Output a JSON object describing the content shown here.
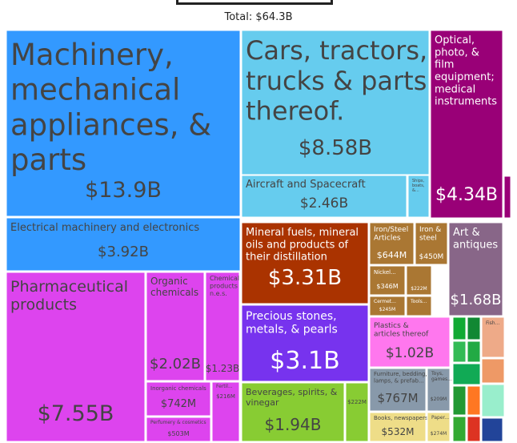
{
  "total_label": "Total: $64.3B",
  "chart_data": {
    "type": "treemap",
    "total": 64.3,
    "unit": "B USD",
    "tiles": [
      {
        "name": "Machinery, mechanical appliances, & parts",
        "label": "Machinery,\nmechanical\nappliances, &\nparts",
        "value": 13.9,
        "value_label": "$13.9B",
        "color": "#3399ff"
      },
      {
        "name": "Electrical machinery and electronics",
        "label": "Electrical machinery and electronics",
        "value": 3.92,
        "value_label": "$3.92B",
        "color": "#3399ff"
      },
      {
        "name": "Cars, tractors, trucks & parts thereof.",
        "label": "Cars, tractors,\ntrucks & parts\nthereof.",
        "value": 8.58,
        "value_label": "$8.58B",
        "color": "#66ccee"
      },
      {
        "name": "Aircraft and Spacecraft",
        "label": "Aircraft and Spacecraft",
        "value": 2.46,
        "value_label": "$2.46B",
        "color": "#66ccee"
      },
      {
        "name": "Ships, boats, &...",
        "label": "Ships,\nboats,\n&...",
        "value": 0.2,
        "value_label": "",
        "color": "#66ccee"
      },
      {
        "name": "Optical, photo, & film equipment; medical instruments",
        "label": "Optical,\nphoto, &\nfilm\nequipment;\nmedical\ninstruments",
        "value": 4.34,
        "value_label": "$4.34B",
        "color": "#990077"
      },
      {
        "name": "Mineral fuels, mineral oils and products of their distillation",
        "label": "Mineral fuels, mineral\noils and products of\ntheir distillation",
        "value": 3.31,
        "value_label": "$3.31B",
        "color": "#aa3300"
      },
      {
        "name": "Iron/Steel Articles",
        "label": "Iron/Steel\nArticles",
        "value": 0.644,
        "value_label": "$644M",
        "color": "#aa7733"
      },
      {
        "name": "Iron & steel",
        "label": "Iron &\nsteel",
        "value": 0.45,
        "value_label": "$450M",
        "color": "#aa7733"
      },
      {
        "name": "Nickel...",
        "label": "Nickel...",
        "value": 0.346,
        "value_label": "$346M",
        "color": "#aa7733"
      },
      {
        "name": "Unlabeled",
        "label": "",
        "value": 0.222,
        "value_label": "$222M",
        "color": "#aa7733"
      },
      {
        "name": "Cermet...",
        "label": "Cermet...",
        "value": 0.245,
        "value_label": "$245M",
        "color": "#aa7733"
      },
      {
        "name": "Tools...",
        "label": "Tools...",
        "value": 0.1,
        "value_label": "",
        "color": "#aa7733"
      },
      {
        "name": "Art & antiques",
        "label": "Art &\nantiques",
        "value": 1.68,
        "value_label": "$1.68B",
        "color": "#886688"
      },
      {
        "name": "Pharmaceutical products",
        "label": "Pharmaceutical\nproducts",
        "value": 7.55,
        "value_label": "$7.55B",
        "color": "#dd44ee"
      },
      {
        "name": "Organic chemicals",
        "label": "Organic\nchemicals",
        "value": 2.02,
        "value_label": "$2.02B",
        "color": "#dd44ee"
      },
      {
        "name": "Chemical products n.e.s.",
        "label": "Chemical\nproducts\nn.e.s.",
        "value": 1.23,
        "value_label": "$1.23B",
        "color": "#dd44ee"
      },
      {
        "name": "Inorganic chemicals",
        "label": "Inorganic chemicals",
        "value": 0.742,
        "value_label": "$742M",
        "color": "#dd44ee"
      },
      {
        "name": "Perfumery & cosmetics",
        "label": "Perfumery & cosmetics",
        "value": 0.503,
        "value_label": "$503M",
        "color": "#dd44ee"
      },
      {
        "name": "Fertil...",
        "label": "Fertil...",
        "value": 0.216,
        "value_label": "$216M",
        "color": "#dd44ee"
      },
      {
        "name": "Precious stones, metals, & pearls",
        "label": "Precious stones,\nmetals, & pearls",
        "value": 3.1,
        "value_label": "$3.1B",
        "color": "#7733ee"
      },
      {
        "name": "Beverages, spirits, & vinegar",
        "label": "Beverages, spirits, &\nvinegar",
        "value": 1.94,
        "value_label": "$1.94B",
        "color": "#88cc33"
      },
      {
        "name": "Unlabeled",
        "label": "",
        "value": 0.222,
        "value_label": "$222M",
        "color": "#88cc33"
      },
      {
        "name": "Plastics & articles thereof",
        "label": "Plastics &\narticles thereof",
        "value": 1.02,
        "value_label": "$1.02B",
        "color": "#ff77ee"
      },
      {
        "name": "Furniture, bedding, lamps, & prefab...",
        "label": "Furniture, bedding,\nlamps, & prefab...",
        "value": 0.767,
        "value_label": "$767M",
        "color": "#8899aa"
      },
      {
        "name": "Toys, games...",
        "label": "Toys,\ngames...",
        "value": 0.209,
        "value_label": "$209M",
        "color": "#8899aa"
      },
      {
        "name": "Books, newspapers...",
        "label": "Books, newspapers...",
        "value": 0.532,
        "value_label": "$532M",
        "color": "#eedd88"
      },
      {
        "name": "Paper...",
        "label": "Paper...",
        "value": 0.274,
        "value_label": "$274M",
        "color": "#eedd88"
      },
      {
        "name": "Fish...",
        "label": "Fish...",
        "value": 0.25,
        "value_label": "",
        "color": "#eeaa88"
      }
    ]
  }
}
